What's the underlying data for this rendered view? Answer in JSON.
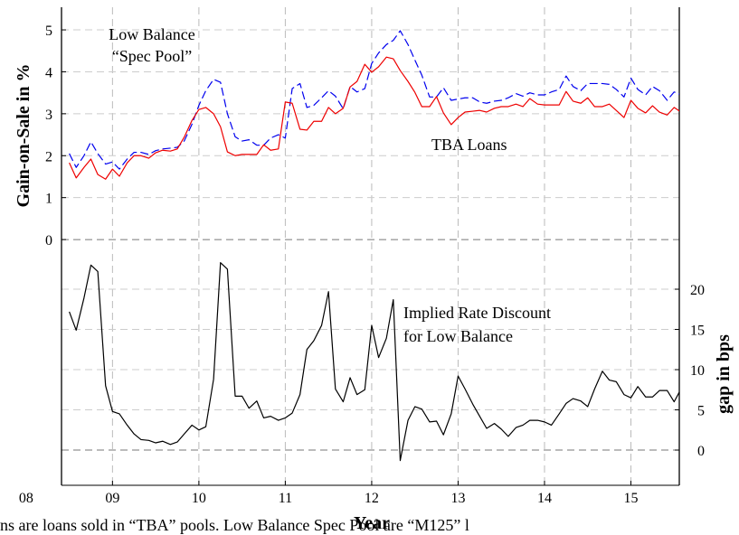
{
  "chart_data": {
    "type": "line",
    "xlabel": "Year",
    "ylabel": "Gain-on-Sale in %",
    "y2label": "gap in bps",
    "note": "ns are loans sold in “TBA” pools. Low Balance Spec Pool are “M125” l",
    "annotations": [
      "Low Balance",
      "“Spec Pool”",
      "TBA Loans",
      "Implied Rate Discount",
      "for Low Balance"
    ],
    "grid": true,
    "xlim": [
      2008.41,
      2015.56
    ],
    "xticks": [
      {
        "value": 2008,
        "label": "08"
      },
      {
        "value": 2009,
        "label": "09"
      },
      {
        "value": 2010,
        "label": "10"
      },
      {
        "value": 2011,
        "label": "11"
      },
      {
        "value": 2012,
        "label": "12"
      },
      {
        "value": 2013,
        "label": "13"
      },
      {
        "value": 2014,
        "label": "14"
      },
      {
        "value": 2015,
        "label": "15"
      }
    ],
    "ylim": [
      -5.86,
      5.54
    ],
    "yticks": [
      0,
      1,
      2,
      3,
      4,
      5
    ],
    "y2lim": [
      -4.38,
      55.06
    ],
    "y2ticks": [
      0,
      5,
      10,
      15,
      20
    ],
    "x": [
      2008.5,
      2008.58,
      2008.67,
      2008.75,
      2008.83,
      2008.92,
      2009.0,
      2009.08,
      2009.17,
      2009.25,
      2009.33,
      2009.42,
      2009.5,
      2009.58,
      2009.67,
      2009.75,
      2009.83,
      2009.92,
      2010.0,
      2010.08,
      2010.17,
      2010.25,
      2010.33,
      2010.42,
      2010.5,
      2010.58,
      2010.67,
      2010.75,
      2010.83,
      2010.92,
      2011.0,
      2011.08,
      2011.17,
      2011.25,
      2011.33,
      2011.42,
      2011.5,
      2011.58,
      2011.67,
      2011.75,
      2011.83,
      2011.92,
      2012.0,
      2012.08,
      2012.17,
      2012.25,
      2012.33,
      2012.42,
      2012.5,
      2012.58,
      2012.67,
      2012.75,
      2012.83,
      2012.92,
      2013.0,
      2013.08,
      2013.17,
      2013.25,
      2013.33,
      2013.42,
      2013.5,
      2013.58,
      2013.67,
      2013.75,
      2013.83,
      2013.92,
      2014.0,
      2014.08,
      2014.17,
      2014.25,
      2014.33,
      2014.42,
      2014.5,
      2014.58,
      2014.67,
      2014.75,
      2014.83,
      2014.92,
      2015.0,
      2015.08,
      2015.17,
      2015.25,
      2015.33,
      2015.42,
      2015.5,
      2015.58
    ],
    "series": [
      {
        "color": "#0000ee",
        "dashed": true,
        "values": [
          2.05,
          1.72,
          2.0,
          2.33,
          2.05,
          1.8,
          1.85,
          1.68,
          1.92,
          2.08,
          2.08,
          2.03,
          2.12,
          2.16,
          2.18,
          2.2,
          2.35,
          2.75,
          3.2,
          3.55,
          3.82,
          3.75,
          3.0,
          2.45,
          2.35,
          2.38,
          2.25,
          2.25,
          2.42,
          2.5,
          2.42,
          3.6,
          3.72,
          3.15,
          3.2,
          3.38,
          3.55,
          3.42,
          3.12,
          3.65,
          3.52,
          3.6,
          4.2,
          4.45,
          4.65,
          4.75,
          4.98,
          4.65,
          4.28,
          3.92,
          3.4,
          3.4,
          3.62,
          3.32,
          3.35,
          3.38,
          3.38,
          3.28,
          3.25,
          3.3,
          3.32,
          3.38,
          3.48,
          3.42,
          3.5,
          3.45,
          3.45,
          3.52,
          3.58,
          3.9,
          3.65,
          3.55,
          3.72,
          3.72,
          3.72,
          3.7,
          3.58,
          3.4,
          3.85,
          3.58,
          3.45,
          3.65,
          3.55,
          3.32,
          3.52,
          3.45
        ]
      },
      {
        "color": "#ee0000",
        "values": [
          1.83,
          1.47,
          1.72,
          1.92,
          1.55,
          1.44,
          1.68,
          1.51,
          1.83,
          2.0,
          2.0,
          1.94,
          2.07,
          2.13,
          2.11,
          2.16,
          2.44,
          2.84,
          3.1,
          3.15,
          3.0,
          2.69,
          2.09,
          2.0,
          2.03,
          2.03,
          2.03,
          2.26,
          2.13,
          2.16,
          3.28,
          3.25,
          2.63,
          2.61,
          2.82,
          2.82,
          3.15,
          3.0,
          3.13,
          3.64,
          3.77,
          4.18,
          3.99,
          4.12,
          4.35,
          4.31,
          4.03,
          3.77,
          3.51,
          3.17,
          3.17,
          3.41,
          3.02,
          2.74,
          2.91,
          3.04,
          3.06,
          3.08,
          3.04,
          3.13,
          3.17,
          3.17,
          3.23,
          3.17,
          3.36,
          3.23,
          3.21,
          3.21,
          3.21,
          3.53,
          3.3,
          3.25,
          3.38,
          3.17,
          3.17,
          3.23,
          3.08,
          2.91,
          3.32,
          3.13,
          3.02,
          3.19,
          3.04,
          2.97,
          3.15,
          3.04
        ]
      },
      {
        "color": "#000000",
        "axis": "y2",
        "values": [
          17.2,
          14.9,
          18.9,
          23.0,
          22.2,
          8.0,
          4.8,
          4.5,
          3.1,
          2.0,
          1.3,
          1.2,
          0.9,
          1.1,
          0.7,
          1.0,
          2.0,
          3.1,
          2.5,
          2.9,
          8.8,
          23.3,
          22.5,
          6.7,
          6.7,
          5.2,
          6.1,
          4.0,
          4.2,
          3.7,
          4.0,
          4.6,
          6.9,
          12.5,
          13.6,
          15.5,
          19.7,
          7.6,
          6.0,
          9.0,
          6.9,
          7.5,
          15.5,
          11.5,
          13.9,
          18.7,
          -1.3,
          3.7,
          5.4,
          5.1,
          3.5,
          3.6,
          1.9,
          4.5,
          9.2,
          7.6,
          5.7,
          4.2,
          2.7,
          3.3,
          2.6,
          1.7,
          2.8,
          3.1,
          3.7,
          3.7,
          3.5,
          3.1,
          4.5,
          5.8,
          6.4,
          6.1,
          5.4,
          7.6,
          9.8,
          8.7,
          8.5,
          6.9,
          6.5,
          7.9,
          6.6,
          6.6,
          7.4,
          7.4,
          6.0,
          7.6
        ]
      }
    ]
  }
}
